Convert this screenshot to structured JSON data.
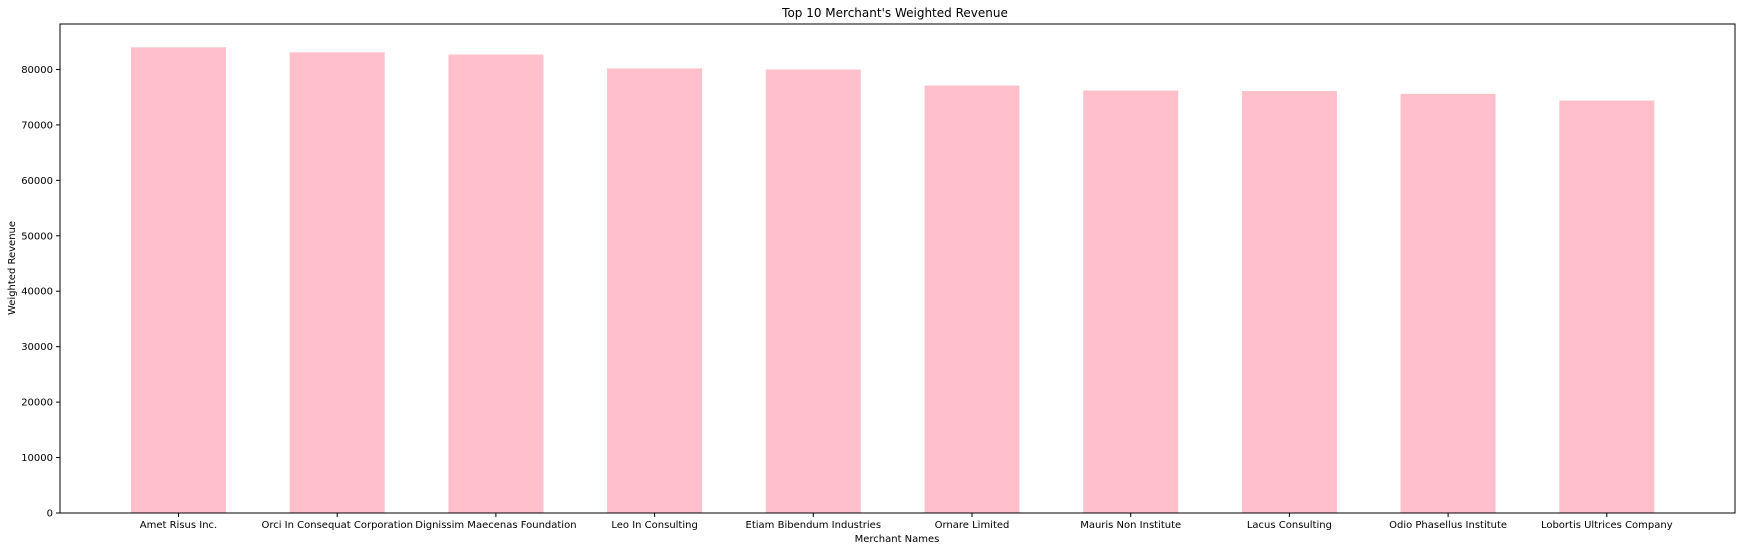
{
  "chart_data": {
    "type": "bar",
    "title": "Top 10 Merchant's Weighted Revenue",
    "xlabel": "Merchant Names",
    "ylabel": "Weighted Revenue",
    "categories": [
      "Amet Risus Inc.",
      "Orci In Consequat Corporation",
      "Dignissim Maecenas Foundation",
      "Leo In Consulting",
      "Etiam Bibendum Industries",
      "Ornare Limited",
      "Mauris Non Institute",
      "Lacus Consulting",
      "Odio Phasellus Institute",
      "Lobortis Ultrices Company"
    ],
    "values": [
      84000,
      83100,
      82700,
      80200,
      80000,
      77100,
      76200,
      76100,
      75600,
      74400
    ],
    "ylim": [
      0,
      88200
    ],
    "yticks": [
      0,
      10000,
      20000,
      30000,
      40000,
      50000,
      60000,
      70000,
      80000
    ],
    "grid": false,
    "legend": "none",
    "bar_color": "#ffc0cb"
  }
}
